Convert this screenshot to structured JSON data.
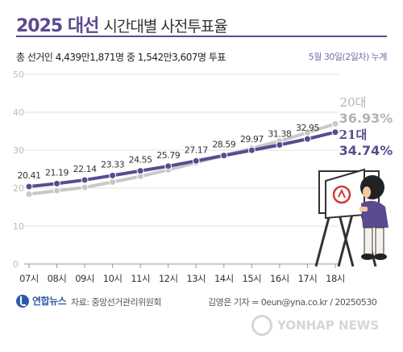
{
  "header": {
    "title_bold": "2025 대선",
    "title_rest": "시간대별 사전투표율",
    "summary": "총 선거인 4,439만1,871명 중 1,542만3,607명 투표",
    "date_note": "5월 30일(2일차) 누계"
  },
  "chart_data": {
    "type": "line",
    "categories": [
      "07시",
      "08시",
      "09시",
      "10시",
      "11시",
      "12시",
      "13시",
      "14시",
      "15시",
      "16시",
      "17시",
      "18시"
    ],
    "ylim": [
      0,
      50
    ],
    "yticks": [
      0,
      10,
      20,
      30,
      40,
      50
    ],
    "grid": true,
    "series": [
      {
        "name": "20대",
        "final_label": "36.93%",
        "color": "#c8c8c8",
        "values": [
          18.4,
          19.3,
          20.2,
          21.6,
          23.1,
          24.8,
          26.7,
          28.6,
          30.5,
          32.4,
          34.6,
          36.93
        ],
        "labeled": false
      },
      {
        "name": "21대",
        "final_label": "34.74%",
        "color": "#5b4a8f",
        "values": [
          20.41,
          21.19,
          22.14,
          23.33,
          24.55,
          25.79,
          27.17,
          28.59,
          29.97,
          31.38,
          32.95,
          34.74
        ],
        "labeled": true,
        "data_labels": [
          "20.41",
          "21.19",
          "22.14",
          "23.33",
          "24.55",
          "25.79",
          "27.17",
          "28.59",
          "29.97",
          "31.38",
          "32.95"
        ]
      }
    ]
  },
  "footer": {
    "logo": "연합뉴스",
    "source": "자료: 중앙선거관리위원회",
    "credit": "김영은 기자 = 0eun@yna.co.kr / 20250530"
  },
  "watermark": "YONHAP NEWS",
  "illustration": {
    "icon": "voter-in-booth-illustration"
  }
}
